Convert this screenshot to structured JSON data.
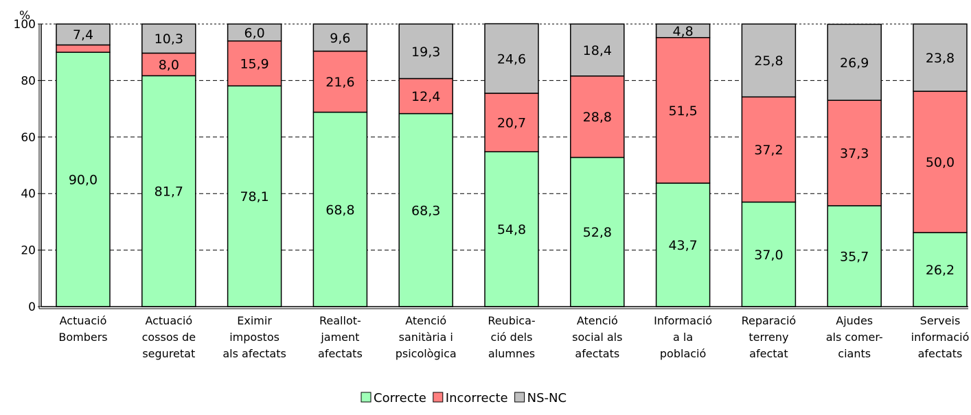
{
  "chart_data": {
    "type": "bar",
    "stacked": true,
    "ylabel": "%",
    "ylim": [
      0,
      100
    ],
    "yticks": [
      "0",
      "20",
      "40",
      "60",
      "80",
      "100"
    ],
    "grid": true,
    "legend_position": "bottom",
    "categories": [
      [
        "Actuació",
        "Bombers"
      ],
      [
        "Actuació",
        "cossos de",
        "seguretat"
      ],
      [
        "Eximir",
        "impostos",
        "als afectats"
      ],
      [
        "Reallot-",
        "jament",
        "afectats"
      ],
      [
        "Atenció",
        "sanitària i",
        "psicològica"
      ],
      [
        "Reubica-",
        "ció dels",
        "alumnes"
      ],
      [
        "Atenció",
        "social als",
        "afectats"
      ],
      [
        "Informació",
        "a la",
        "població"
      ],
      [
        "Reparació",
        "terreny",
        "afectat"
      ],
      [
        "Ajudes",
        "als comer-",
        "ciants"
      ],
      [
        "Serveis",
        "informació",
        "afectats"
      ]
    ],
    "series": [
      {
        "name": "Correcte",
        "color": "#a0ffb8",
        "values": [
          90.0,
          81.7,
          78.1,
          68.8,
          68.3,
          54.8,
          52.8,
          43.7,
          37.0,
          35.7,
          26.2
        ],
        "labels": [
          "90,0",
          "81,7",
          "78,1",
          "68,8",
          "68,3",
          "54,8",
          "52,8",
          "43,7",
          "37,0",
          "35,7",
          "26,2"
        ]
      },
      {
        "name": "Incorrecte",
        "color": "#ff8080",
        "values": [
          2.6,
          8.0,
          15.9,
          21.6,
          12.4,
          20.7,
          28.8,
          51.5,
          37.2,
          37.3,
          50.0
        ],
        "labels": [
          "",
          "8,0",
          "15,9",
          "21,6",
          "12,4",
          "20,7",
          "28,8",
          "51,5",
          "37,2",
          "37,3",
          "50,0"
        ]
      },
      {
        "name": "NS-NC",
        "color": "#c0c0c0",
        "values": [
          7.4,
          10.3,
          6.0,
          9.6,
          19.3,
          24.6,
          18.4,
          4.8,
          25.8,
          26.9,
          23.8
        ],
        "labels": [
          "7,4",
          "10,3",
          "6,0",
          "9,6",
          "19,3",
          "24,6",
          "18,4",
          "4,8",
          "25,8",
          "26,9",
          "23,8"
        ]
      }
    ]
  }
}
